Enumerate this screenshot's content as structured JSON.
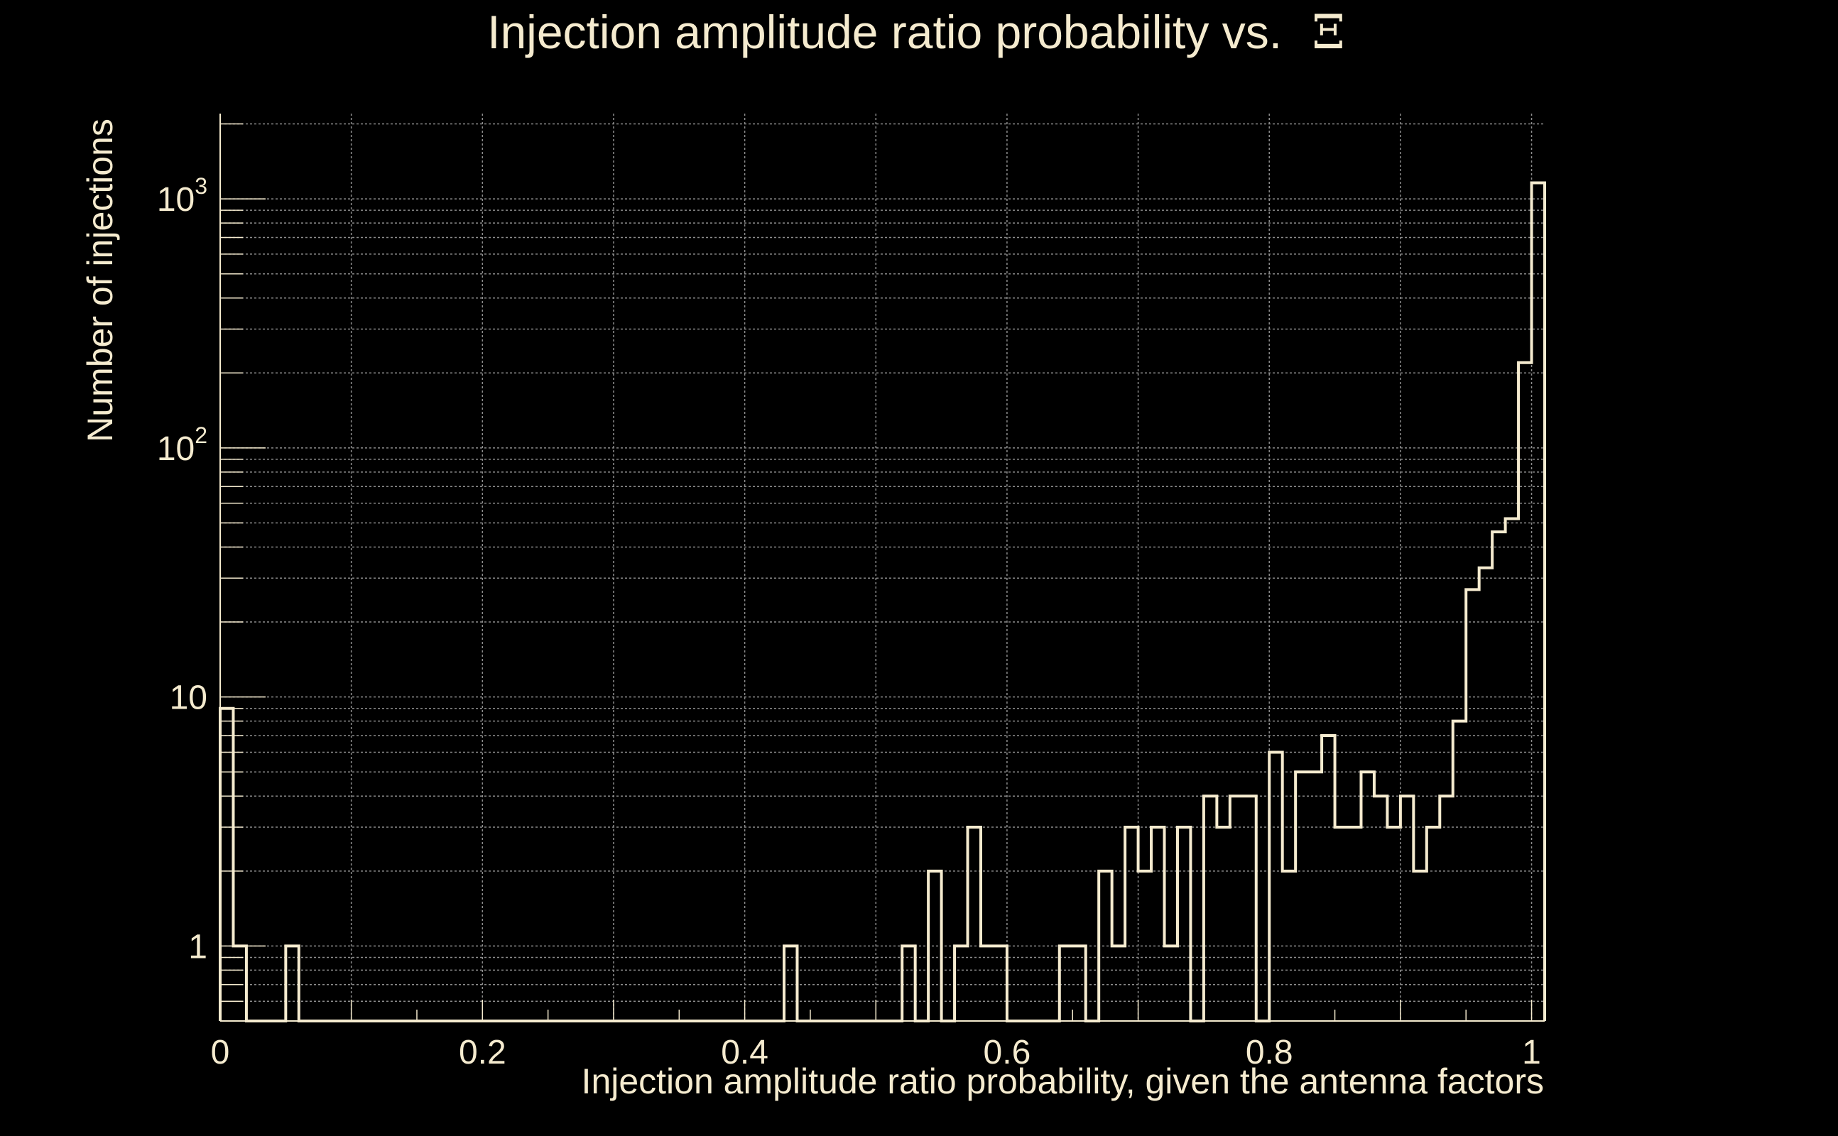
{
  "chart_data": {
    "type": "histogram",
    "title": "Injection amplitude ratio probability vs.",
    "title_symbol": "Ξ",
    "xlabel": "Injection amplitude ratio probability, given the antenna factors",
    "ylabel": "Number of injections",
    "x_scale": "linear",
    "y_scale": "log",
    "xlim": [
      0,
      1.01
    ],
    "ylim": [
      0.5,
      2200
    ],
    "grid": true,
    "x_ticks": [
      {
        "value": 0,
        "label": "0"
      },
      {
        "value": 0.2,
        "label": "0.2"
      },
      {
        "value": 0.4,
        "label": "0.4"
      },
      {
        "value": 0.6,
        "label": "0.6"
      },
      {
        "value": 0.8,
        "label": "0.8"
      },
      {
        "value": 1,
        "label": "1"
      }
    ],
    "y_ticks": [
      {
        "value": 1,
        "base": "1",
        "exp": ""
      },
      {
        "value": 10,
        "base": "10",
        "exp": ""
      },
      {
        "value": 100,
        "base": "10",
        "exp": "2"
      },
      {
        "value": 1000,
        "base": "10",
        "exp": "3"
      }
    ],
    "bin_width": 0.01,
    "bin_start": 0,
    "counts": [
      9,
      1,
      0,
      0,
      0,
      1,
      0,
      0,
      0,
      0,
      0,
      0,
      0,
      0,
      0,
      0,
      0,
      0,
      0,
      0,
      0,
      0,
      0,
      0,
      0,
      0,
      0,
      0,
      0,
      0,
      0,
      0,
      0,
      0,
      0,
      0,
      0,
      0,
      0,
      0,
      0,
      0,
      0,
      1,
      0,
      0,
      0,
      0,
      0,
      0,
      0,
      0,
      1,
      0,
      2,
      0,
      1,
      3,
      1,
      1,
      0,
      0,
      0,
      0,
      1,
      1,
      0,
      2,
      1,
      3,
      2,
      3,
      1,
      3,
      0,
      4,
      3,
      4,
      4,
      0,
      6,
      2,
      5,
      5,
      7,
      3,
      3,
      5,
      4,
      3,
      4,
      2,
      3,
      4,
      8,
      27,
      33,
      46,
      52,
      220,
      1160
    ],
    "line_color": "#F5EBCF",
    "background_color": "#000000",
    "grid_color": "#8C8C8C"
  }
}
